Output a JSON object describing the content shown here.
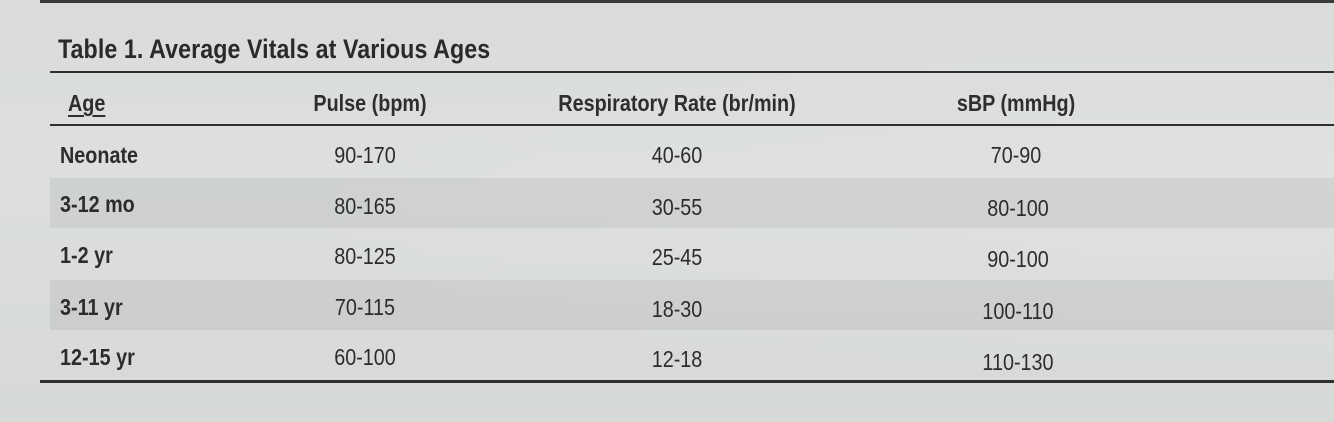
{
  "caption": "Table 1. Average Vitals at Various Ages",
  "columns": [
    "Age",
    "Pulse (bpm)",
    "Respiratory Rate (br/min)",
    "sBP (mmHg)"
  ],
  "rows": [
    [
      "Neonate",
      "90-170",
      "40-60",
      "70-90"
    ],
    [
      "3-12 mo",
      "80-165",
      "30-55",
      "80-100"
    ],
    [
      "1-2 yr",
      "80-125",
      "25-45",
      "90-100"
    ],
    [
      "3-11 yr",
      "70-115",
      "18-30",
      "100-110"
    ],
    [
      "12-15 yr",
      "60-100",
      "12-18",
      "110-130"
    ]
  ]
}
